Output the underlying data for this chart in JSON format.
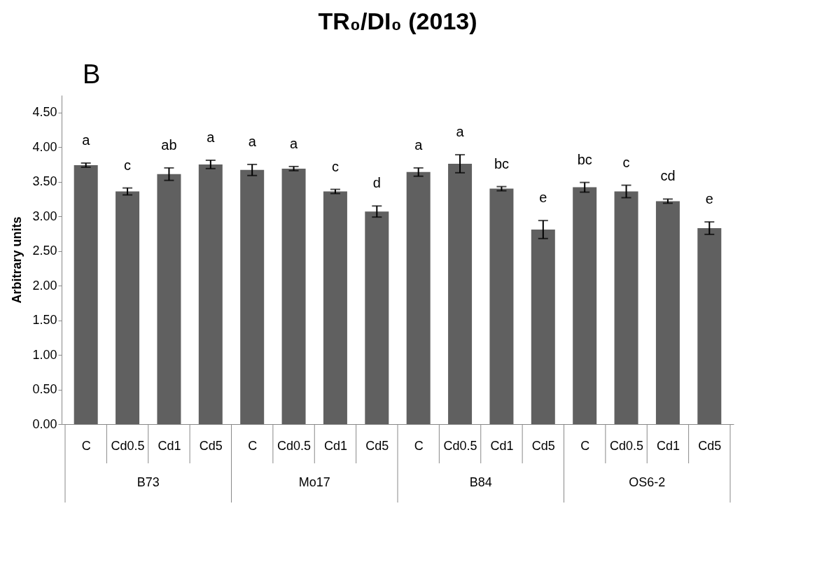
{
  "chart_data": {
    "type": "bar",
    "title": "TR₀/DI₀ (2013)",
    "ylabel": "Arbitrary units",
    "categories": [
      "C",
      "Cd0.5",
      "Cd1",
      "Cd5",
      "C",
      "Cd0.5",
      "Cd1",
      "Cd5",
      "C",
      "Cd0.5",
      "Cd1",
      "Cd5",
      "C",
      "Cd0.5",
      "Cd1",
      "Cd5"
    ],
    "values": [
      3.74,
      3.36,
      3.61,
      3.75,
      3.67,
      3.69,
      3.36,
      3.07,
      3.64,
      3.76,
      3.4,
      2.81,
      3.42,
      3.36,
      3.22,
      2.83
    ],
    "errors": [
      0.03,
      0.05,
      0.09,
      0.06,
      0.08,
      0.03,
      0.03,
      0.08,
      0.06,
      0.13,
      0.03,
      0.13,
      0.07,
      0.09,
      0.03,
      0.09
    ],
    "value_labels": [
      "a",
      "c",
      "ab",
      "a",
      "a",
      "a",
      "c",
      "d",
      "a",
      "a",
      "bc",
      "e",
      "bc",
      "c",
      "cd",
      "e"
    ],
    "color": "#606060",
    "ylim": [
      0,
      4.75
    ],
    "yticks": [
      {
        "value": 0,
        "label": "0.00"
      },
      {
        "value": 0.5,
        "label": "0.50"
      },
      {
        "value": 1,
        "label": "1.00"
      },
      {
        "value": 1.5,
        "label": "1.50"
      },
      {
        "value": 2,
        "label": "2.00"
      },
      {
        "value": 2.5,
        "label": "2.50"
      },
      {
        "value": 3,
        "label": "3.00"
      },
      {
        "value": 3.5,
        "label": "3.50"
      },
      {
        "value": 4,
        "label": "4.00"
      },
      {
        "value": 4.5,
        "label": "4.50"
      }
    ],
    "annotations": [
      "B",
      "B73",
      "Mo17",
      "B84",
      "OS6-2"
    ],
    "grid": false
  }
}
